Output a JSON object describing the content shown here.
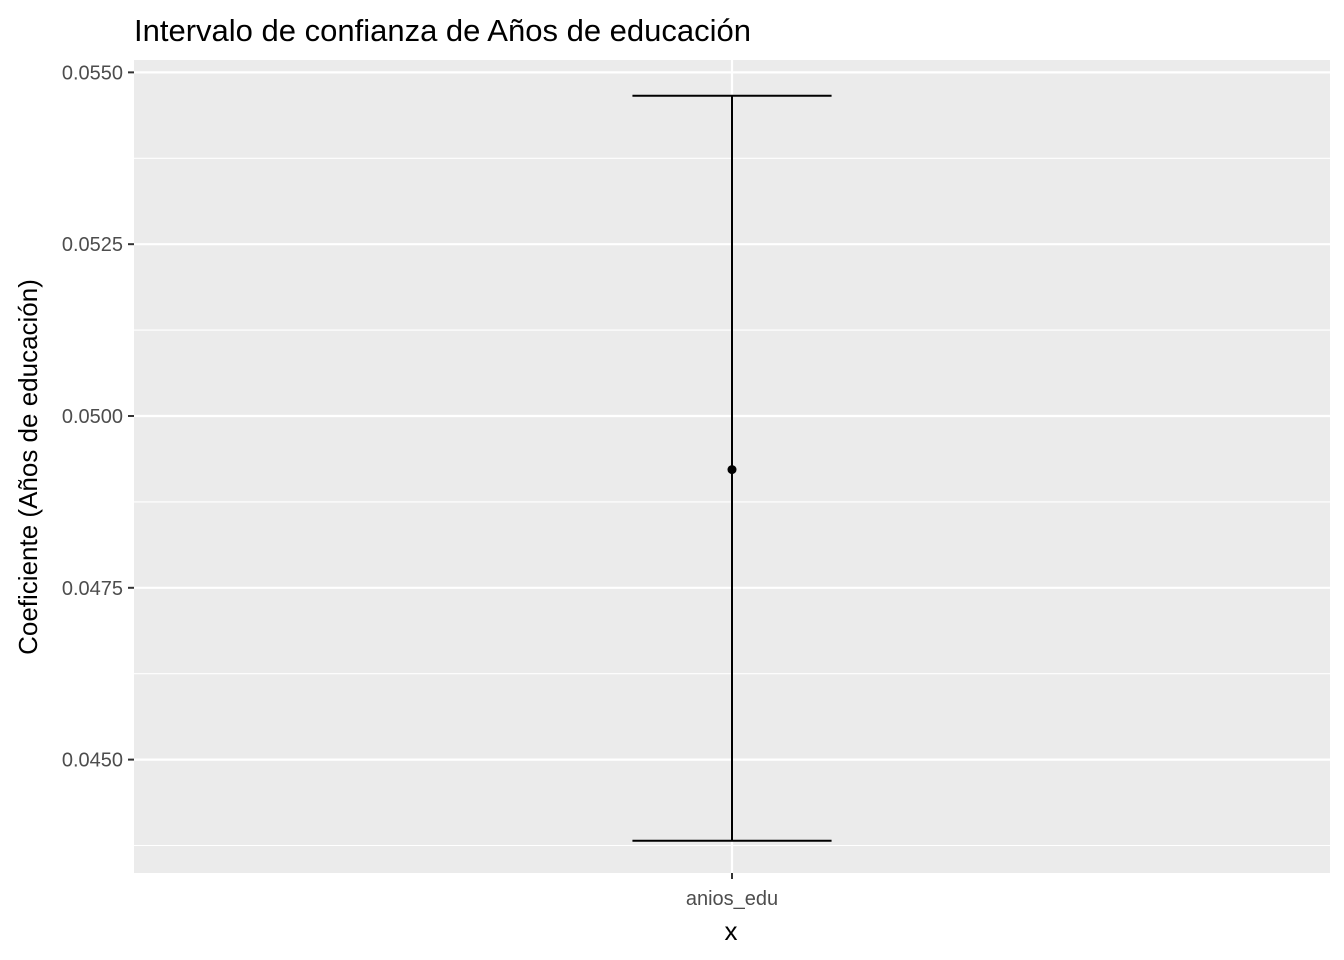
{
  "chart_data": {
    "type": "errorbar",
    "title": "Intervalo de confianza de Años de educación",
    "xlabel": "x",
    "ylabel": "Coeficiente (Años de educación)",
    "categories": [
      "anios_edu"
    ],
    "points": [
      {
        "x": "anios_edu",
        "estimate": 0.04922,
        "lower": 0.04382,
        "upper": 0.05466
      }
    ],
    "ylim": [
      0.04335,
      0.05518
    ],
    "yticks": [
      0.045,
      0.0475,
      0.05,
      0.0525,
      0.055
    ],
    "ytick_labels": [
      "0.0450",
      "0.0475",
      "0.0500",
      "0.0525",
      "0.0550"
    ],
    "yminor": [
      0.04375,
      0.04625,
      0.04875,
      0.05125,
      0.05375
    ],
    "grid": true,
    "legend": "none",
    "colors": {
      "panel_background": "#ebebeb",
      "grid_line": "#ffffff",
      "mark": "#000000",
      "tick_text": "#4d4d4d"
    }
  }
}
